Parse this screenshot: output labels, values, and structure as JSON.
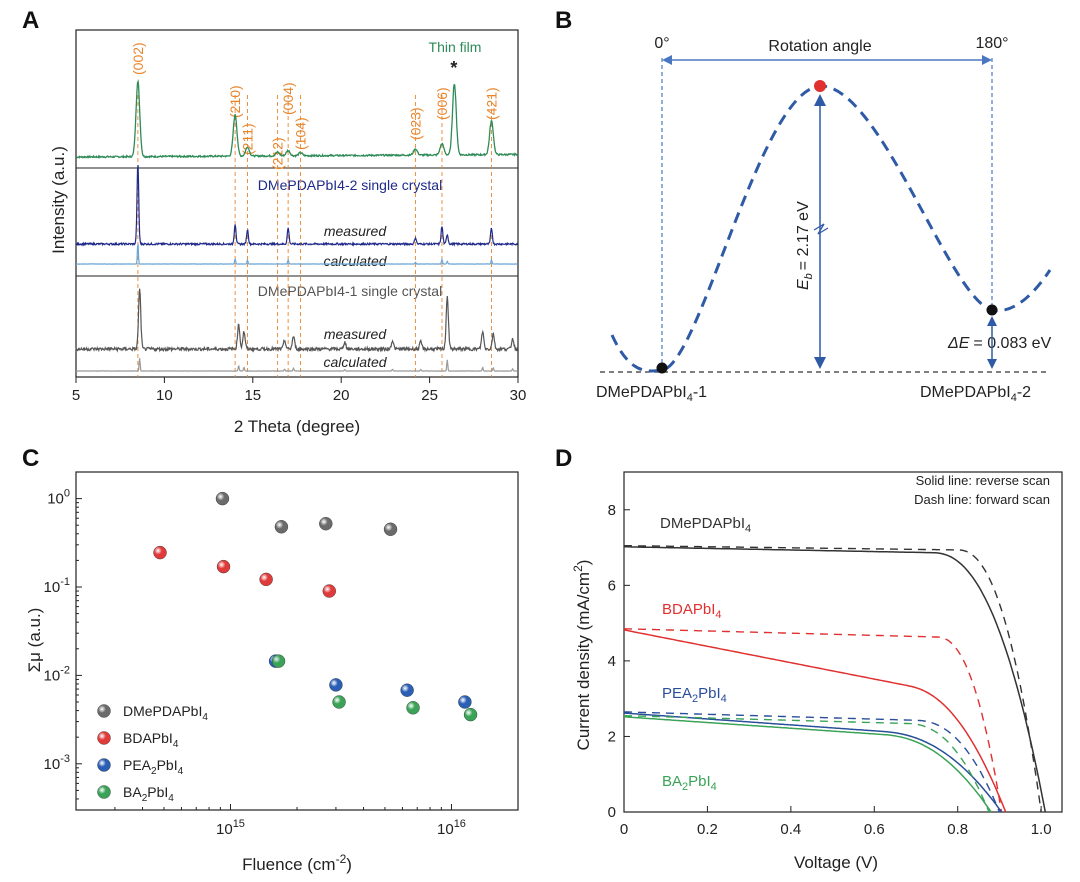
{
  "colors": {
    "green": "#2e8b57",
    "navy": "#1f2a8a",
    "lightblue": "#6aa6d8",
    "gray": "#555555",
    "lightgray": "#9a9a9a",
    "orange": "#e8852c",
    "blue": "#1f5aa6",
    "red": "#e03030",
    "dash_blue": "#2a4f9a"
  },
  "chart_data": [
    {
      "panel": "A",
      "type": "line",
      "xlabel": "2 Theta (degree)",
      "ylabel": "Intensity (a.u.)",
      "xlim": [
        5,
        30
      ],
      "xticks": [
        "5",
        "10",
        "15",
        "20",
        "25",
        "30"
      ],
      "peak_labels": [
        {
          "text": "(002)",
          "x": 8.5
        },
        {
          "text": "(210)",
          "x": 14.0
        },
        {
          "text": "(211)",
          "x": 14.7
        },
        {
          "text": "(212)",
          "x": 16.4
        },
        {
          "text": "(004)",
          "x": 17.0
        },
        {
          "text": "(104)",
          "x": 17.7
        },
        {
          "text": "(023)",
          "x": 24.2
        },
        {
          "text": "(006)",
          "x": 25.7
        },
        {
          "text": "(421)",
          "x": 28.5
        }
      ],
      "star": "*",
      "star_x": 26.4,
      "series": [
        {
          "name": "Thin film",
          "peaks": [
            [
              8.5,
              1.0
            ],
            [
              14.0,
              0.55
            ],
            [
              14.7,
              0.12
            ],
            [
              16.4,
              0.05
            ],
            [
              17.0,
              0.07
            ],
            [
              17.7,
              0.04
            ],
            [
              24.2,
              0.08
            ],
            [
              25.7,
              0.15
            ],
            [
              26.4,
              0.95
            ],
            [
              28.5,
              0.45
            ]
          ]
        },
        {
          "name": "DMePDAPbI4-2 single crystal",
          "measured_label": "measured",
          "calculated_label": "calculated",
          "peaks": [
            [
              8.5,
              1.0
            ],
            [
              14.0,
              0.25
            ],
            [
              14.7,
              0.18
            ],
            [
              17.0,
              0.2
            ],
            [
              24.2,
              0.08
            ],
            [
              25.7,
              0.22
            ],
            [
              26.0,
              0.12
            ],
            [
              28.5,
              0.2
            ]
          ]
        },
        {
          "name": "DMePDAPbI4-1 single crystal",
          "measured_label": "measured",
          "calculated_label": "calculated",
          "peaks": [
            [
              8.6,
              0.85
            ],
            [
              14.2,
              0.35
            ],
            [
              14.5,
              0.25
            ],
            [
              16.8,
              0.12
            ],
            [
              17.3,
              0.18
            ],
            [
              20.2,
              0.1
            ],
            [
              22.9,
              0.12
            ],
            [
              24.5,
              0.1
            ],
            [
              26.0,
              0.75
            ],
            [
              28.0,
              0.25
            ],
            [
              28.6,
              0.22
            ],
            [
              29.7,
              0.15
            ]
          ]
        }
      ]
    },
    {
      "panel": "B",
      "type": "line",
      "title": "Rotation angle",
      "angle_start": "0°",
      "angle_end": "180°",
      "barrier_label": "= 2.17 eV",
      "barrier_symbol": "E",
      "barrier_sub": "b",
      "delta_label": "= 0.083 eV",
      "delta_symbol": "ΔE",
      "state1_pre": "DMePDAPbI",
      "state1_sub": "4",
      "state1_post": "-1",
      "state2_pre": "DMePDAPbI",
      "state2_sub": "4",
      "state2_post": "-2",
      "relative_energy_eV": [
        0,
        2.17,
        0.083
      ]
    },
    {
      "panel": "C",
      "type": "scatter",
      "xlabel": "Fluence (cm",
      "xlabel_sup": "-2",
      "xlabel_end": ")",
      "ylabel": "Σμ (a.u.)",
      "xscale": "log",
      "yscale": "log",
      "xlim": [
        200000000000000.0,
        2e+16
      ],
      "ylim": [
        0.0003,
        2
      ],
      "xticks": [
        {
          "value": 1000000000000000.0,
          "base": "10",
          "exp": "15"
        },
        {
          "value": 1e+16,
          "base": "10",
          "exp": "16"
        }
      ],
      "yticks": [
        {
          "value": 1,
          "base": "10",
          "exp": "0"
        },
        {
          "value": 0.1,
          "base": "10",
          "exp": "-1"
        },
        {
          "value": 0.01,
          "base": "10",
          "exp": "-2"
        },
        {
          "value": 0.001,
          "base": "10",
          "exp": "-3"
        }
      ],
      "series": [
        {
          "name": "DMePDAPbI4",
          "label_pre": "DMePDAPbI",
          "label_sub": "4",
          "label_post": "",
          "color": "#6b6b6b",
          "x": [
            920000000000000.0,
            1700000000000000.0,
            2700000000000000.0,
            5300000000000000.0
          ],
          "y": [
            1.0,
            0.48,
            0.52,
            0.45
          ]
        },
        {
          "name": "BDAPbI4",
          "label_pre": "BDAPbI",
          "label_sub": "4",
          "label_post": "",
          "color": "#e03a3a",
          "x": [
            480000000000000.0,
            930000000000000.0,
            1450000000000000.0,
            2800000000000000.0
          ],
          "y": [
            0.245,
            0.17,
            0.122,
            0.09
          ]
        },
        {
          "name": "PEA2PbI4",
          "label_pre": "PEA",
          "label_sub": "2",
          "label_post": "PbI4",
          "color": "#2a5fb5",
          "x": [
            1600000000000000.0,
            3000000000000000.0,
            6300000000000000.0,
            1.15e+16
          ],
          "y": [
            0.0145,
            0.0078,
            0.0068,
            0.005
          ]
        },
        {
          "name": "BA2PbI4",
          "label_pre": "BA",
          "label_sub": "2",
          "label_post": "PbI4",
          "color": "#3aa357",
          "x": [
            1650000000000000.0,
            3100000000000000.0,
            6700000000000000.0,
            1.22e+16
          ],
          "y": [
            0.0145,
            0.005,
            0.0043,
            0.0036
          ]
        }
      ]
    },
    {
      "panel": "D",
      "type": "line",
      "xlabel": "Voltage (V)",
      "ylabel": "Current density (mA/cm",
      "ylabel_sup": "2",
      "ylabel_end": ")",
      "xlim": [
        0,
        1.05
      ],
      "ylim": [
        0,
        9
      ],
      "xticks": [
        "0",
        "0.2",
        "0.4",
        "0.6",
        "0.8",
        "1.0"
      ],
      "yticks": [
        "0",
        "2",
        "4",
        "6",
        "8"
      ],
      "note_line1": "Solid line: reverse scan",
      "note_line2": "Dash line: forward scan",
      "series": [
        {
          "name": "DMePDAPbI4",
          "label_pre": "DMePDAPbI",
          "label_sub": "4",
          "label_post": "",
          "color": "#333333",
          "Jsc": 7.02,
          "Voc": 1.01,
          "knee": 0.74,
          "fwd_Jsc": 7.05,
          "fwd_Voc": 1.0,
          "fwd_knee": 0.8
        },
        {
          "name": "BDAPbI4",
          "label_pre": "BDAPbI",
          "label_sub": "4",
          "label_post": "",
          "color": "#e03030",
          "Jsc": 4.82,
          "Voc": 0.915,
          "knee": 0.68,
          "fwd_Jsc": 4.85,
          "fwd_Voc": 0.905,
          "fwd_knee": 0.75
        },
        {
          "name": "PEA2PbI4",
          "label_pre": "PEA",
          "label_sub": "2",
          "label_post": "PbI4",
          "color": "#2a4f9a",
          "Jsc": 2.62,
          "Voc": 0.905,
          "knee": 0.62,
          "fwd_Jsc": 2.65,
          "fwd_Voc": 0.9,
          "fwd_knee": 0.7
        },
        {
          "name": "BA2PbI4",
          "label_pre": "BA",
          "label_sub": "2",
          "label_post": "PbI4",
          "color": "#3aa357",
          "Jsc": 2.52,
          "Voc": 0.88,
          "knee": 0.62,
          "fwd_Jsc": 2.55,
          "fwd_Voc": 0.875,
          "fwd_knee": 0.68
        }
      ]
    }
  ],
  "panels": {
    "a": "A",
    "b": "B",
    "c": "C",
    "d": "D"
  }
}
